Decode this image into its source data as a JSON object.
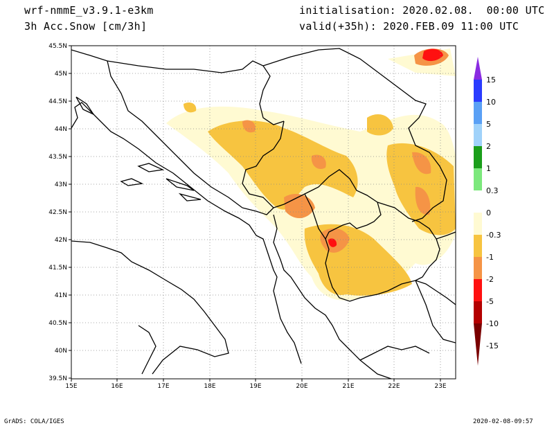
{
  "header": {
    "model": "wrf-nmmE_v3.9.1-e3km",
    "field": "3h Acc.Snow [cm/3h]",
    "init": "initialisation: 2020.02.08.  00:00 UTC",
    "valid": "valid(+35h): 2020.FEB.09 11:00 UTC"
  },
  "footer": {
    "credit": "GrADS: COLA/IGES",
    "timestamp": "2020-02-08-09:57"
  },
  "axes": {
    "lon_labels": [
      "15E",
      "16E",
      "17E",
      "18E",
      "19E",
      "20E",
      "21E",
      "22E",
      "23E"
    ],
    "lat_labels": [
      "45.5N",
      "45N",
      "44.5N",
      "44N",
      "43.5N",
      "43N",
      "42.5N",
      "42N",
      "41.5N",
      "41N",
      "40.5N",
      "40N",
      "39.5N"
    ]
  },
  "colorbar": {
    "labels": [
      "15",
      "10",
      "5",
      "2",
      "1",
      "0.3",
      "0",
      "-0.3",
      "-1",
      "-2",
      "-5",
      "-10",
      "-15"
    ],
    "colors": [
      "#8a2be2",
      "#2a3cff",
      "#5aa0f5",
      "#a0d2fa",
      "#1a9e1a",
      "#7ce87c",
      "#ffffff",
      "#fffad2",
      "#f7c440",
      "#f59446",
      "#ff1010",
      "#b40000",
      "#7a0000"
    ]
  }
}
